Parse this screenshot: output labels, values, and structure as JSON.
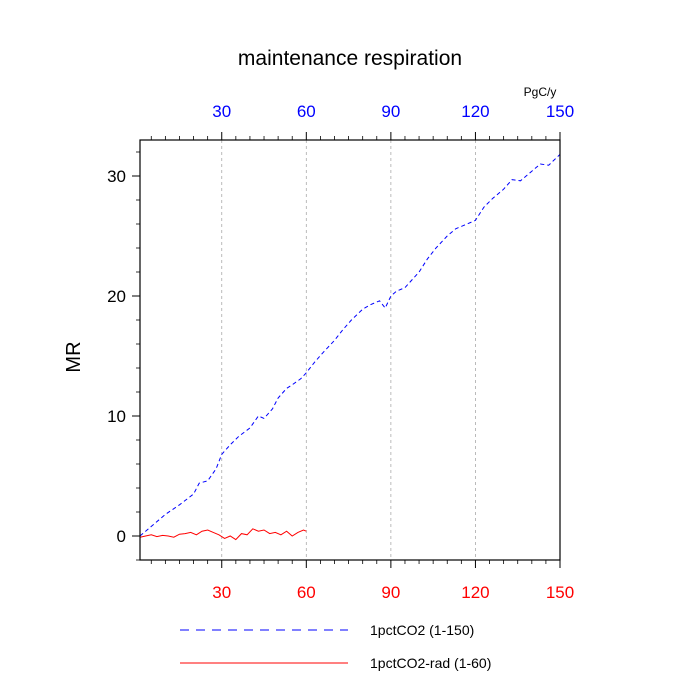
{
  "chart_data": {
    "type": "line",
    "title": "maintenance respiration",
    "ylabel": "MR",
    "top_axis_unit": "PgC/y",
    "xlim": [
      1,
      150
    ],
    "ylim": [
      -2,
      33
    ],
    "grid": "vertical dashed at x ticks",
    "x_ticks": [
      30,
      60,
      90,
      120,
      150
    ],
    "x_tick_labels": [
      "30",
      "60",
      "90",
      "120",
      "150"
    ],
    "y_ticks": [
      0,
      10,
      20,
      30
    ],
    "y_tick_labels": [
      "0",
      "10",
      "20",
      "30"
    ],
    "bottom_tick_color": "#ff0000",
    "top_tick_color": "#0000ff",
    "series": [
      {
        "name": "1pctCO2 (1-150)",
        "color": "#0000ff",
        "style": "dashed",
        "x": [
          1,
          5,
          10,
          15,
          20,
          22,
          25,
          28,
          30,
          33,
          36,
          40,
          43,
          45,
          48,
          50,
          53,
          55,
          58,
          60,
          63,
          66,
          70,
          73,
          76,
          80,
          83,
          86,
          88,
          90,
          92,
          95,
          100,
          103,
          106,
          110,
          113,
          116,
          120,
          123,
          126,
          130,
          133,
          136,
          140,
          143,
          146,
          150
        ],
        "y": [
          0,
          0.8,
          1.8,
          2.6,
          3.5,
          4.4,
          4.6,
          5.6,
          6.8,
          7.6,
          8.3,
          9.0,
          10.0,
          9.8,
          10.6,
          11.5,
          12.3,
          12.6,
          13.1,
          13.6,
          14.5,
          15.3,
          16.3,
          17.2,
          18.0,
          18.9,
          19.3,
          19.6,
          19.0,
          20.0,
          20.4,
          20.7,
          22.0,
          23.1,
          24.0,
          25.0,
          25.6,
          25.9,
          26.3,
          27.4,
          28.1,
          28.9,
          29.7,
          29.6,
          30.4,
          31.0,
          30.9,
          31.8
        ]
      },
      {
        "name": "1pctCO2-rad (1-60)",
        "color": "#ff0000",
        "style": "solid",
        "x": [
          1,
          3,
          5,
          7,
          9,
          11,
          13,
          15,
          17,
          19,
          21,
          23,
          25,
          27,
          29,
          31,
          33,
          35,
          37,
          39,
          41,
          43,
          45,
          47,
          49,
          51,
          53,
          55,
          57,
          59,
          60
        ],
        "y": [
          -0.1,
          0.0,
          0.1,
          -0.05,
          0.05,
          0.0,
          -0.1,
          0.15,
          0.2,
          0.3,
          0.1,
          0.4,
          0.5,
          0.3,
          0.1,
          -0.2,
          0.0,
          -0.3,
          0.2,
          0.1,
          0.6,
          0.4,
          0.5,
          0.2,
          0.3,
          0.1,
          0.4,
          0.0,
          0.3,
          0.5,
          0.4
        ]
      }
    ]
  }
}
